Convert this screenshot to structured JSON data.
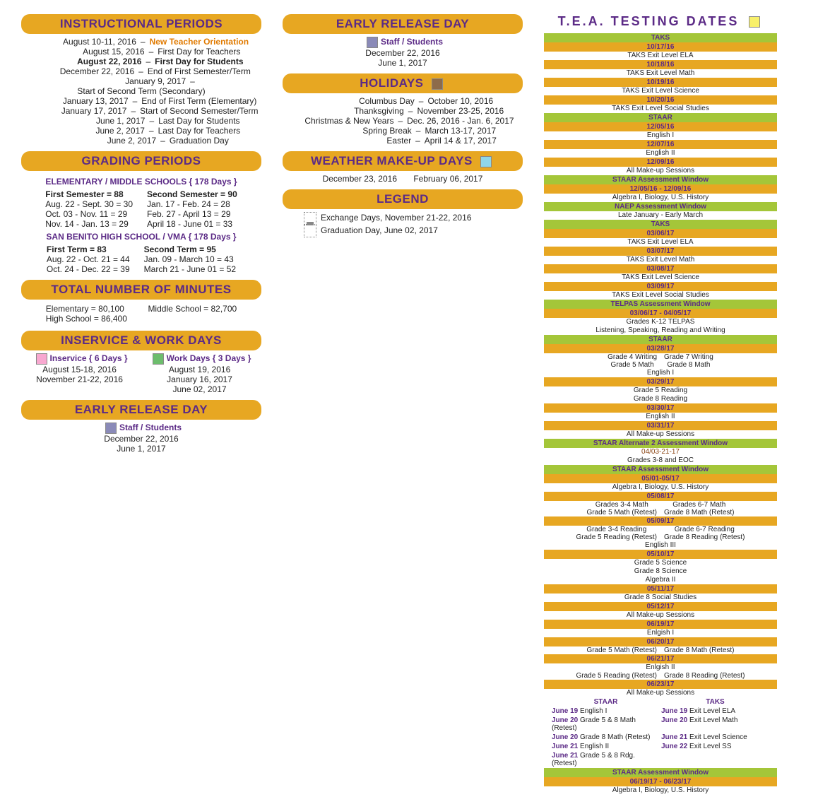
{
  "headers": {
    "instructional": "INSTRUCTIONAL PERIODS",
    "grading": "GRADING PERIODS",
    "minutes": "TOTAL NUMBER OF MINUTES",
    "inservice": "INSERVICE  &  WORK DAYS",
    "early_release": "EARLY RELEASE DAY",
    "holidays": "HOLIDAYS",
    "weather": "WEATHER MAKE-UP DAYS",
    "legend": "LEGEND",
    "tea": "T.E.A. TESTING DATES"
  },
  "colors": {
    "header_bg": "#e7a722",
    "purple": "#5b2a86",
    "orange_text": "#e07a00",
    "green": "#a4c639",
    "brown": "#8b4513",
    "inservice_pink": "#f8a8d0",
    "workday_green": "#6dbd6d",
    "staff_blue": "#8a8ab8",
    "holiday_brown": "#8d6b4a",
    "weather_cyan": "#8fd6e8",
    "tea_yellow": "#f8f06a"
  },
  "instructional": [
    {
      "date": "August 10-11, 2016",
      "desc": "New Teacher Orientation",
      "style": "orange"
    },
    {
      "date": "August 15, 2016",
      "desc": "First Day for Teachers"
    },
    {
      "date": "August 22, 2016",
      "desc": "First Day for Students",
      "style": "bold",
      "bold_date": true
    },
    {
      "date": "December 22, 2016",
      "desc": "End of First Semester/Term"
    },
    {
      "date": "January 9, 2017",
      "desc": "Start of Second Term (Secondary)"
    },
    {
      "date": "January 13, 2017",
      "desc": "End of First Term (Elementary)"
    },
    {
      "date": "January 17, 2017",
      "desc": "Start of Second Semester/Term"
    },
    {
      "date": "June 1, 2017",
      "desc": "Last Day for Students"
    },
    {
      "date": "June 2, 2017",
      "desc": "Last Day for Teachers"
    },
    {
      "date": "June 2, 2017",
      "desc": "Graduation Day"
    }
  ],
  "grading": {
    "elem_head": "ELEMENTARY / MIDDLE SCHOOLS  { 178 Days }",
    "elem_left_head": "First Semester  =  88",
    "elem_right_head": "Second Semester  =  90",
    "elem_left": [
      "Aug. 22 - Sept. 30  =  30",
      "Oct. 03 - Nov. 11  =  29",
      "Nov. 14 - Jan. 13  =  29"
    ],
    "elem_right": [
      "Jan. 17 - Feb. 24  =  28",
      "Feb. 27 - April 13  =  29",
      "April 18 - June 01  =  33"
    ],
    "hs_head": "SAN BENITO HIGH SCHOOL / VMA  { 178 Days }",
    "hs_left_head": "First Term  =  83",
    "hs_right_head": "Second Term  =  95",
    "hs_left": [
      "Aug. 22 - Oct. 21  =  44",
      "Oct. 24 - Dec. 22  =  39"
    ],
    "hs_right": [
      "Jan. 09 - March 10  =  43",
      "March 21 - June 01  =  52"
    ]
  },
  "minutes": {
    "elementary": "Elementary = 80,100",
    "middle": "Middle School = 82,700",
    "high": "High School  = 86,400"
  },
  "inservice": {
    "left_head": "Inservice  { 6 Days }",
    "left": [
      "August 15-18, 2016",
      "November 21-22, 2016"
    ],
    "right_head": "Work Days  { 3 Days }",
    "right": [
      "August 19, 2016",
      "January 16, 2017",
      "June 02, 2017"
    ]
  },
  "early_release": {
    "label": "Staff / Students",
    "dates": [
      "December 22, 2016",
      "June 1, 2017"
    ]
  },
  "holidays": [
    {
      "name": "Columbus Day",
      "date": "October 10, 2016"
    },
    {
      "name": "Thanksgiving",
      "date": "November 23-25, 2016"
    },
    {
      "name": "Christmas & New Years",
      "date": "Dec. 26, 2016 - Jan. 6, 2017"
    },
    {
      "name": "Spring Break",
      "date": "March 13-17, 2017"
    },
    {
      "name": "Easter",
      "date": "April 14 & 17, 2017"
    }
  ],
  "weather": [
    "December 23, 2016",
    "February 06, 2017"
  ],
  "legend": [
    {
      "icon": "exchange",
      "text": "Exchange Days,  November 21-22, 2016"
    },
    {
      "icon": "grad",
      "text": "Graduation Day,  June 02, 2017"
    }
  ],
  "tea": [
    {
      "type": "green",
      "text": "TAKS"
    },
    {
      "type": "orange",
      "text": "10/17/16"
    },
    {
      "type": "detail",
      "text": "TAKS Exit Level ELA"
    },
    {
      "type": "orange",
      "text": "10/18/16"
    },
    {
      "type": "detail",
      "text": "TAKS Exit Level Math"
    },
    {
      "type": "orange",
      "text": "10/19/16"
    },
    {
      "type": "detail",
      "text": "TAKS Exit Level Science"
    },
    {
      "type": "orange",
      "text": "10/20/16"
    },
    {
      "type": "detail",
      "text": "TAKS Exit Level Social Studies"
    },
    {
      "type": "green",
      "text": "STAAR"
    },
    {
      "type": "orange",
      "text": "12/05/16"
    },
    {
      "type": "detail",
      "text": "English I"
    },
    {
      "type": "orange",
      "text": "12/07/16"
    },
    {
      "type": "detail",
      "text": "English II"
    },
    {
      "type": "orange",
      "text": "12/09/16"
    },
    {
      "type": "detail",
      "text": "All Make-up Sessions"
    },
    {
      "type": "green",
      "text": "STAAR Assessment Window"
    },
    {
      "type": "orange",
      "text": "12/05/16 - 12/09/16"
    },
    {
      "type": "detail",
      "text": "Algebra I, Biology, U.S. History"
    },
    {
      "type": "green",
      "text": "NAEP Assessment Window"
    },
    {
      "type": "detail",
      "text": "Late January - Early March"
    },
    {
      "type": "green",
      "text": "TAKS"
    },
    {
      "type": "orange",
      "text": "03/06/17"
    },
    {
      "type": "detail",
      "text": "TAKS Exit Level ELA"
    },
    {
      "type": "orange",
      "text": "03/07/17"
    },
    {
      "type": "detail",
      "text": "TAKS Exit Level Math"
    },
    {
      "type": "orange",
      "text": "03/08/17"
    },
    {
      "type": "detail",
      "text": "TAKS Exit Level Science"
    },
    {
      "type": "orange",
      "text": "03/09/17"
    },
    {
      "type": "detail",
      "text": "TAKS Exit Level Social Studies"
    },
    {
      "type": "green",
      "text": "TELPAS Assessment Window"
    },
    {
      "type": "orange",
      "text": "03/06/17 - 04/05/17"
    },
    {
      "type": "detail",
      "text": "Grades K-12 TELPAS"
    },
    {
      "type": "detail",
      "text": "Listening, Speaking, Reading and Writing"
    },
    {
      "type": "green",
      "text": "STAAR"
    },
    {
      "type": "orange",
      "text": "03/28/17"
    },
    {
      "type": "twocol",
      "left": [
        "Grade 4  Writing",
        "Grade 5 Math"
      ],
      "right": [
        "Grade 7  Writing",
        "Grade 8 Math"
      ]
    },
    {
      "type": "detail",
      "text": "English I"
    },
    {
      "type": "orange",
      "text": "03/29/17"
    },
    {
      "type": "detail",
      "text": "Grade 5 Reading"
    },
    {
      "type": "detail",
      "text": "Grade 8 Reading"
    },
    {
      "type": "orange",
      "text": "03/30/17"
    },
    {
      "type": "detail",
      "text": "English II"
    },
    {
      "type": "orange",
      "text": "03/31/17"
    },
    {
      "type": "detail",
      "text": "All Make-up Sessions"
    },
    {
      "type": "green",
      "text": "STAAR Alternate 2 Assessment Window"
    },
    {
      "type": "detail-brown",
      "text": "04/03-21-17"
    },
    {
      "type": "detail",
      "text": "Grades 3-8 and EOC"
    },
    {
      "type": "green",
      "text": "STAAR Assessment Window"
    },
    {
      "type": "orange",
      "text": "05/01-05/17"
    },
    {
      "type": "detail",
      "text": "Algebra I, Biology, U.S. History"
    },
    {
      "type": "orange",
      "text": "05/08/17"
    },
    {
      "type": "twocol",
      "left": [
        "Grades 3-4 Math",
        "Grade 5 Math (Retest)"
      ],
      "right": [
        "Grades 6-7 Math",
        "Grade 8 Math (Retest)"
      ]
    },
    {
      "type": "orange",
      "text": "05/09/17"
    },
    {
      "type": "twocol",
      "left": [
        "Grade 3-4 Reading",
        "Grade 5 Reading (Retest)"
      ],
      "right": [
        "Grade 6-7 Reading",
        "Grade 8 Reading (Retest)"
      ]
    },
    {
      "type": "detail",
      "text": "English III"
    },
    {
      "type": "orange",
      "text": "05/10/17"
    },
    {
      "type": "detail",
      "text": "Grade 5 Science"
    },
    {
      "type": "detail",
      "text": "Grade 8 Science"
    },
    {
      "type": "detail",
      "text": "Algebra II"
    },
    {
      "type": "orange",
      "text": "05/11/17"
    },
    {
      "type": "detail",
      "text": "Grade 8 Social Studies"
    },
    {
      "type": "orange",
      "text": "05/12/17"
    },
    {
      "type": "detail",
      "text": "All Make-up Sessions"
    },
    {
      "type": "orange",
      "text": "06/19/17"
    },
    {
      "type": "detail",
      "text": "Enlgish I"
    },
    {
      "type": "orange",
      "text": "06/20/17"
    },
    {
      "type": "twocol",
      "left": [
        "Grade 5 Math (Retest)"
      ],
      "right": [
        "Grade 8 Math (Retest)"
      ]
    },
    {
      "type": "orange",
      "text": "06/21/17"
    },
    {
      "type": "detail",
      "text": "Enlgish II"
    },
    {
      "type": "twocol",
      "left": [
        "Grade 5 Reading (Retest)"
      ],
      "right": [
        "Grade 8 Reading (Retest)"
      ]
    },
    {
      "type": "orange",
      "text": "06/23/17"
    },
    {
      "type": "detail",
      "text": "All Make-up Sessions"
    }
  ],
  "tea_bottom": {
    "left_head": "STAAR",
    "right_head": "TAKS",
    "rows": [
      {
        "ld": "June 19",
        "lt": "English I",
        "rd": "June 19",
        "rt": "Exit Level ELA"
      },
      {
        "ld": "June 20",
        "lt": "Grade 5 & 8 Math (Retest)",
        "rd": "June 20",
        "rt": "Exit Level Math"
      },
      {
        "ld": "June 20",
        "lt": "Grade 8 Math (Retest)",
        "rd": "June 21",
        "rt": "Exit Level Science"
      },
      {
        "ld": "June 21",
        "lt": "English II",
        "rd": "June 22",
        "rt": "Exit Level SS"
      },
      {
        "ld": "June 21",
        "lt": "Grade 5 & 8 Rdg. (Retest)",
        "rd": "",
        "rt": ""
      }
    ],
    "footer_green": "STAAR Assessment Window",
    "footer_orange": "06/19/17 - 06/23/17",
    "footer_detail": "Algebra I, Biology, U.S. History"
  }
}
